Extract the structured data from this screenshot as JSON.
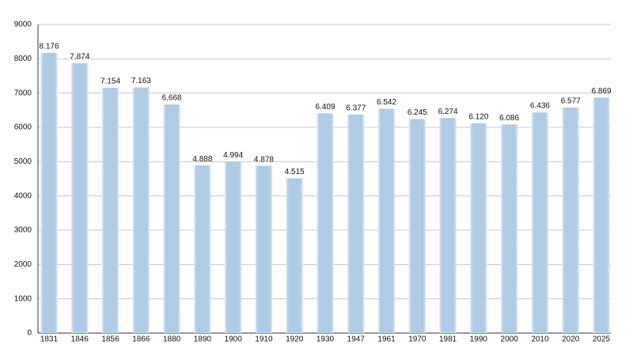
{
  "chart_data": {
    "type": "bar",
    "categories": [
      "1831",
      "1846",
      "1856",
      "1866",
      "1880",
      "1890",
      "1900",
      "1910",
      "1920",
      "1930",
      "1947",
      "1961",
      "1970",
      "1981",
      "1990",
      "2000",
      "2010",
      "2020",
      "2025"
    ],
    "values": [
      8176,
      7874,
      7154,
      7163,
      6668,
      4888,
      4994,
      4878,
      4515,
      6409,
      6377,
      6542,
      6245,
      6274,
      6120,
      6086,
      6436,
      6577,
      6869
    ],
    "value_labels": [
      "8.176",
      "7.874",
      "7.154",
      "7.163",
      "6.668",
      "4.888",
      "4.994",
      "4.878",
      "4.515",
      "6.409",
      "6.377",
      "6.542",
      "6.245",
      "6.274",
      "6.120",
      "6.086",
      "6.436",
      "6.577",
      "6.869"
    ],
    "color": "#b0cbe4",
    "ylim": [
      0,
      9000
    ],
    "yticks": [
      0,
      1000,
      2000,
      3000,
      4000,
      5000,
      6000,
      7000,
      8000,
      9000
    ],
    "grid": true
  }
}
